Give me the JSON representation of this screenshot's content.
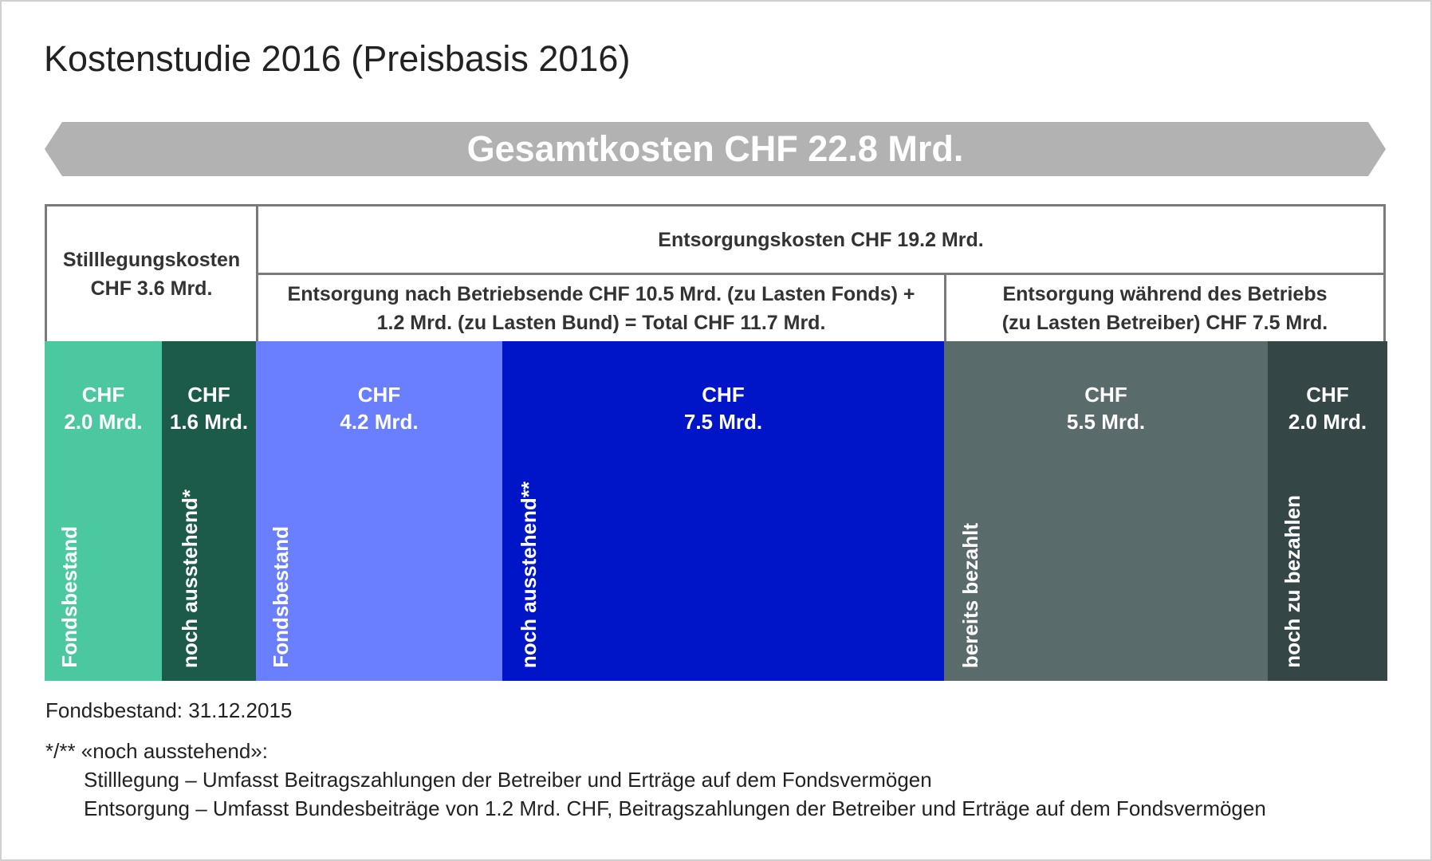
{
  "title": "Kostenstudie 2016 (Preisbasis 2016)",
  "banner": "Gesamtkosten CHF 22.8 Mrd.",
  "headers": {
    "stilllegung": [
      "Stilllegungskosten",
      "CHF 3.6 Mrd."
    ],
    "entsorgung": "Entsorgungskosten CHF 19.2 Mrd.",
    "nach_betriebsende": [
      "Entsorgung nach Betriebsende CHF 10.5 Mrd. (zu Lasten Fonds) +",
      "1.2 Mrd. (zu Lasten Bund) = Total CHF 11.7 Mrd."
    ],
    "waehrend_betrieb": [
      "Entsorgung während des Betriebs",
      "(zu Lasten Betreiber) CHF 7.5 Mrd."
    ]
  },
  "segments": [
    {
      "amount": [
        "CHF",
        "2.0 Mrd."
      ],
      "label": "Fondsbestand",
      "color": "#4cc8a0"
    },
    {
      "amount": [
        "CHF",
        "1.6 Mrd."
      ],
      "label": "noch ausstehend*",
      "color": "#1c5a4a"
    },
    {
      "amount": [
        "CHF",
        "4.2 Mrd."
      ],
      "label": "Fondsbestand",
      "color": "#6a7fff"
    },
    {
      "amount": [
        "CHF",
        "7.5 Mrd."
      ],
      "label": "noch ausstehend**",
      "color": "#0014c8"
    },
    {
      "amount": [
        "CHF",
        "5.5 Mrd."
      ],
      "label": "bereits bezahlt",
      "color": "#5a6b6b"
    },
    {
      "amount": [
        "CHF",
        "2.0 Mrd."
      ],
      "label": "noch zu bezahlen",
      "color": "#344646"
    }
  ],
  "notes": {
    "date": "Fondsbestand: 31.12.2015",
    "heading": "*/** «noch ausstehend»:",
    "line1": "Stilllegung – Umfasst Beitragszahlungen der Betreiber und Erträge auf dem Fondsvermögen",
    "line2": "Entsorgung – Umfasst Bundesbeiträge von 1.2 Mrd. CHF, Beitragszahlungen der Betreiber und Erträge auf dem Fondsvermögen"
  },
  "colors": {
    "banner": "#b2b2b2",
    "border": "#7a7a7a"
  }
}
